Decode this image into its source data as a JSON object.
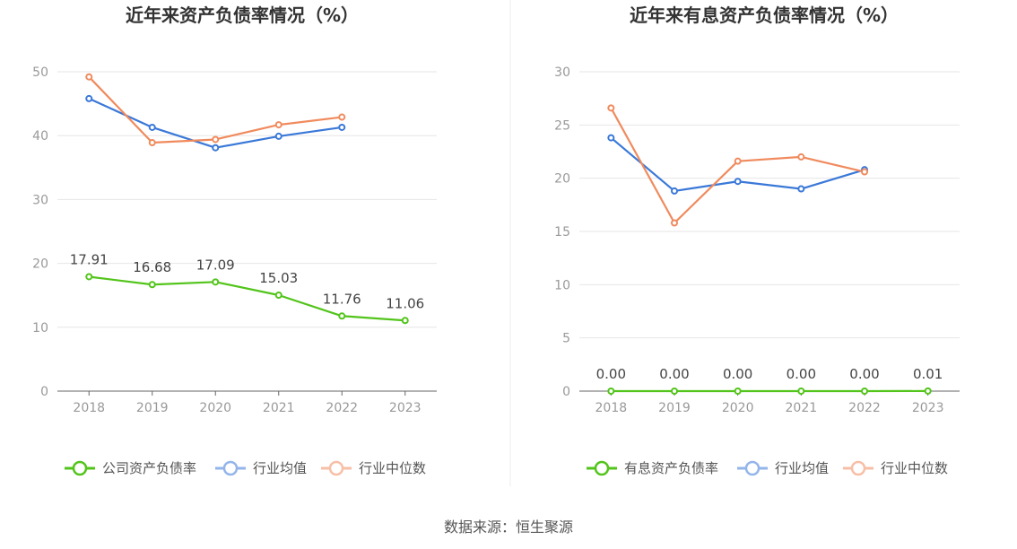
{
  "source": "数据来源：恒生聚源",
  "chart_data": [
    {
      "type": "line",
      "title": "近年来资产负债率情况（%）",
      "x": [
        "2018",
        "2019",
        "2020",
        "2021",
        "2022",
        "2023"
      ],
      "yticks": [
        "0",
        "10",
        "20",
        "30",
        "40",
        "50"
      ],
      "ylim": [
        0,
        50
      ],
      "grid": true,
      "legend_position": "bottom",
      "series": [
        {
          "name": "公司资产负债率",
          "color": "#52c41a",
          "values": [
            17.91,
            16.68,
            17.09,
            15.03,
            11.76,
            11.06
          ],
          "labels": [
            "17.91",
            "16.68",
            "17.09",
            "15.03",
            "11.76",
            "11.06"
          ]
        },
        {
          "name": "行业均值",
          "color": "#3a78d8",
          "values": [
            45.8,
            41.3,
            38.1,
            39.9,
            41.3,
            null
          ]
        },
        {
          "name": "行业中位数",
          "color": "#f08a5d",
          "values": [
            49.2,
            38.9,
            39.4,
            41.7,
            42.9,
            null
          ]
        }
      ]
    },
    {
      "type": "line",
      "title": "近年来有息资产负债率情况（%）",
      "x": [
        "2018",
        "2019",
        "2020",
        "2021",
        "2022",
        "2023"
      ],
      "yticks": [
        "0",
        "5",
        "10",
        "15",
        "20",
        "25",
        "30"
      ],
      "ylim": [
        0,
        30
      ],
      "grid": true,
      "legend_position": "bottom",
      "series": [
        {
          "name": "有息资产负债率",
          "color": "#52c41a",
          "values": [
            0.0,
            0.0,
            0.0,
            0.0,
            0.0,
            0.01
          ],
          "labels": [
            "0.00",
            "0.00",
            "0.00",
            "0.00",
            "0.00",
            "0.01"
          ]
        },
        {
          "name": "行业均值",
          "color": "#3a78d8",
          "values": [
            23.8,
            18.8,
            19.7,
            19.0,
            20.8,
            null
          ]
        },
        {
          "name": "行业中位数",
          "color": "#f08a5d",
          "values": [
            26.6,
            15.8,
            21.6,
            22.0,
            20.6,
            null
          ]
        }
      ]
    }
  ]
}
